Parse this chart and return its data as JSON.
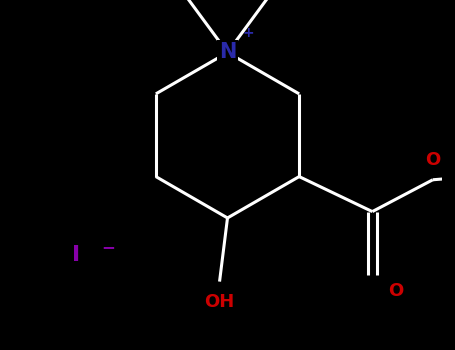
{
  "bg_color": "#000000",
  "bond_color": "#ffffff",
  "N_color": "#2a2aaa",
  "O_color": "#cc0000",
  "I_color": "#8800aa",
  "N_label": "N",
  "N_charge": "+",
  "OH_label": "OH",
  "O_label": "O",
  "I_label": "I",
  "I_charge": "−",
  "bond_width": 2.2,
  "figsize": [
    4.55,
    3.5
  ],
  "dpi": 100
}
